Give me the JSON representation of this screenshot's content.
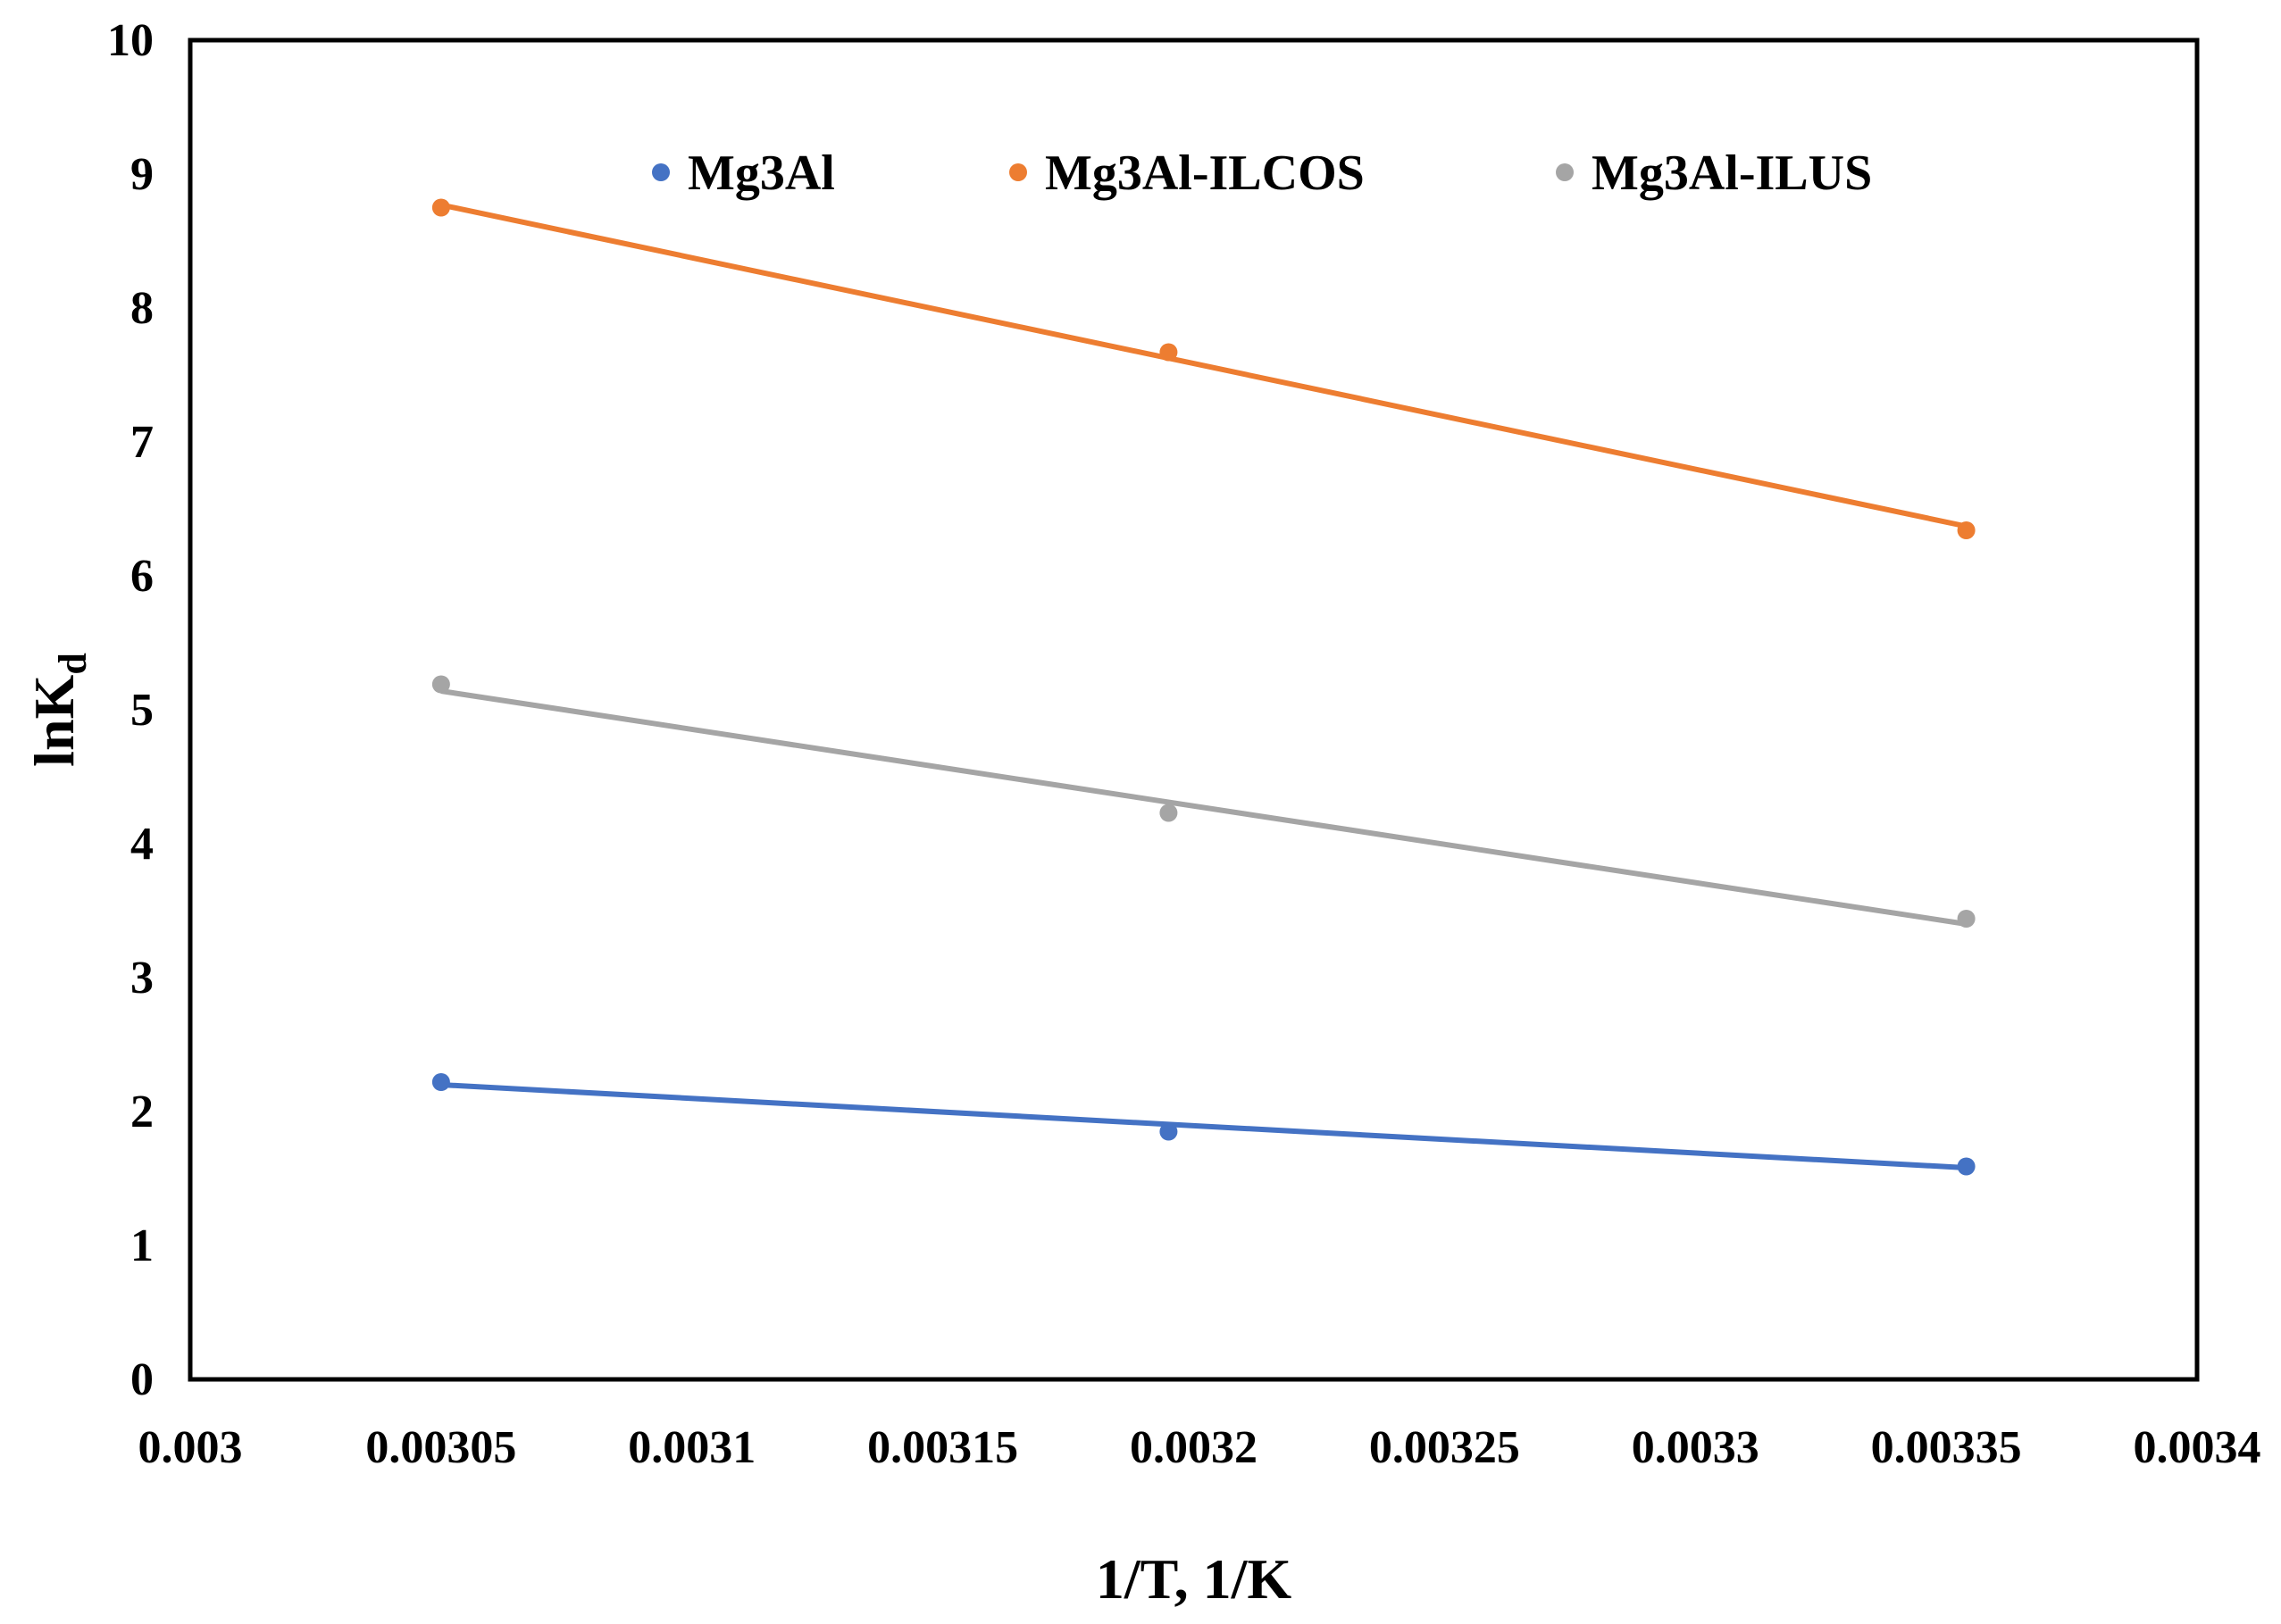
{
  "chart_data": {
    "type": "scatter",
    "title": "",
    "xlabel": "1/T, 1/K",
    "ylabel": {
      "main": "lnK",
      "subscript": "d"
    },
    "xlim": [
      0.003,
      0.0034
    ],
    "ylim": [
      0,
      10
    ],
    "x_ticks": [
      "0.003",
      "0.00305",
      "0.0031",
      "0.00315",
      "0.0032",
      "0.00325",
      "0.0033",
      "0.00335",
      "0.0034"
    ],
    "y_ticks": [
      "0",
      "1",
      "2",
      "3",
      "4",
      "5",
      "6",
      "7",
      "8",
      "9",
      "10"
    ],
    "grid": false,
    "legend_position": "top-inside",
    "trendlines": "linear",
    "series": [
      {
        "name": "Mg3Al",
        "color": "#4472C4",
        "x": [
          0.00305,
          0.003195,
          0.003354
        ],
        "y": [
          2.22,
          1.85,
          1.59
        ],
        "trend": [
          [
            0.00305,
            2.2
          ],
          [
            0.003354,
            1.58
          ]
        ]
      },
      {
        "name": "Mg3Al-ILCOS",
        "color": "#ED7D31",
        "x": [
          0.00305,
          0.003195,
          0.003354
        ],
        "y": [
          8.75,
          7.67,
          6.34
        ],
        "trend": [
          [
            0.00305,
            8.77
          ],
          [
            0.003354,
            6.37
          ]
        ]
      },
      {
        "name": "Mg3Al-ILUS",
        "color": "#A5A5A5",
        "x": [
          0.00305,
          0.003195,
          0.003354
        ],
        "y": [
          5.19,
          4.23,
          3.44
        ],
        "trend": [
          [
            0.00305,
            5.14
          ],
          [
            0.003354,
            3.4
          ]
        ]
      }
    ]
  }
}
